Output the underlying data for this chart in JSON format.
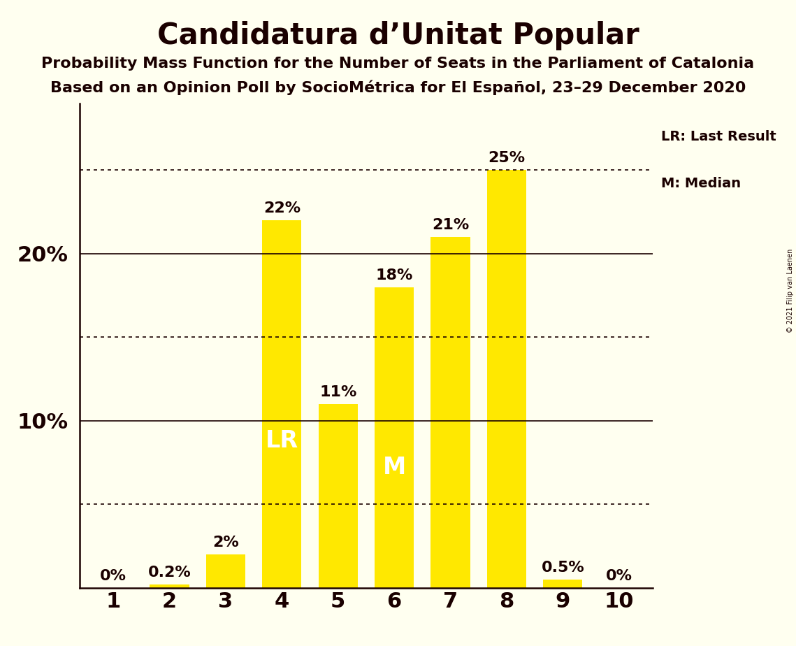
{
  "title": "Candidatura d’Unitat Popular",
  "subtitle1": "Probability Mass Function for the Number of Seats in the Parliament of Catalonia",
  "subtitle2": "Based on an Opinion Poll by SocioMétrica for El Español, 23–29 December 2020",
  "copyright": "© 2021 Filip van Laenen",
  "categories": [
    1,
    2,
    3,
    4,
    5,
    6,
    7,
    8,
    9,
    10
  ],
  "values": [
    0.0,
    0.2,
    2.0,
    22.0,
    11.0,
    18.0,
    21.0,
    25.0,
    0.5,
    0.0
  ],
  "bar_color": "#FFE800",
  "background_color": "#FFFFF0",
  "text_color": "#1A0000",
  "title_fontsize": 30,
  "subtitle_fontsize": 16,
  "bar_label_fontsize": 16,
  "tick_fontsize": 22,
  "ylim": [
    0,
    29
  ],
  "lr_seat": 4,
  "median_seat": 6,
  "lr_value": 22.0,
  "median_value": 18.0,
  "dotted_line_y": [
    5,
    15,
    25
  ],
  "solid_line_y": [
    10,
    20
  ],
  "bar_labels": [
    "0%",
    "0.2%",
    "2%",
    "22%",
    "11%",
    "18%",
    "21%",
    "25%",
    "0.5%",
    "0%"
  ],
  "lr_label": "LR",
  "median_label": "M",
  "legend_lr": "LR: Last Result",
  "legend_m": "M: Median",
  "inside_label_fontsize": 24
}
